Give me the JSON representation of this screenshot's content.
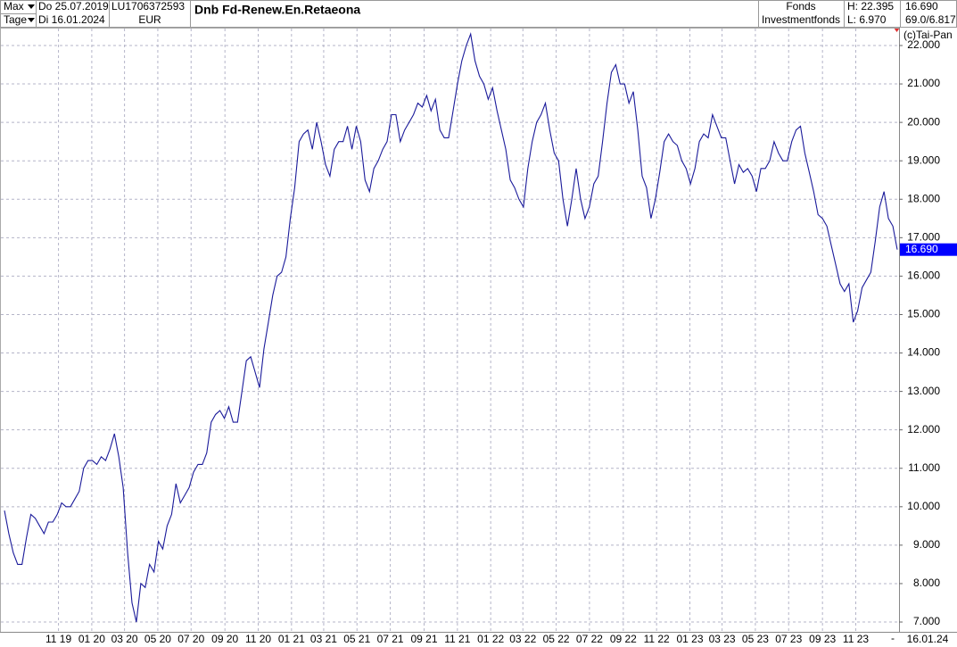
{
  "header": {
    "range": "Max",
    "unit": "Tage",
    "start": "Do 25.07.2019",
    "end": "Di 16.01.2024",
    "isin": "LU1706372593",
    "currency": "EUR",
    "name": "Dnb Fd-Renew.En.Retaeona",
    "kind": "Fonds",
    "category": "Investmentfonds",
    "high": "H: 22.395",
    "low": "L: 6.970",
    "last": "16.690",
    "range_info": "69.0/6.817",
    "copyright": "(c)Tai-Pan"
  },
  "chart_data": {
    "type": "line",
    "color": "#1a1a9a",
    "grid": true,
    "xlim": [
      "2019-07-25",
      "2024-01-16"
    ],
    "xticks": [
      {
        "value": "2019-11-01",
        "label": "11 19"
      },
      {
        "value": "2020-01-01",
        "label": "01 20"
      },
      {
        "value": "2020-03-01",
        "label": "03 20"
      },
      {
        "value": "2020-05-01",
        "label": "05 20"
      },
      {
        "value": "2020-07-01",
        "label": "07 20"
      },
      {
        "value": "2020-09-01",
        "label": "09 20"
      },
      {
        "value": "2020-11-01",
        "label": "11 20"
      },
      {
        "value": "2021-01-01",
        "label": "01 21"
      },
      {
        "value": "2021-03-01",
        "label": "03 21"
      },
      {
        "value": "2021-05-01",
        "label": "05 21"
      },
      {
        "value": "2021-07-01",
        "label": "07 21"
      },
      {
        "value": "2021-09-01",
        "label": "09 21"
      },
      {
        "value": "2021-11-01",
        "label": "11 21"
      },
      {
        "value": "2022-01-01",
        "label": "01 22"
      },
      {
        "value": "2022-03-01",
        "label": "03 22"
      },
      {
        "value": "2022-05-01",
        "label": "05 22"
      },
      {
        "value": "2022-07-01",
        "label": "07 22"
      },
      {
        "value": "2022-09-01",
        "label": "09 22"
      },
      {
        "value": "2022-11-01",
        "label": "11 22"
      },
      {
        "value": "2023-01-01",
        "label": "01 23"
      },
      {
        "value": "2023-03-01",
        "label": "03 23"
      },
      {
        "value": "2023-05-01",
        "label": "05 23"
      },
      {
        "value": "2023-07-01",
        "label": "07 23"
      },
      {
        "value": "2023-09-01",
        "label": "09 23"
      },
      {
        "value": "2023-11-01",
        "label": "11 23"
      }
    ],
    "x_marker": "-",
    "x_end_label": "16.01.24",
    "ylim": [
      6.745,
      22.441
    ],
    "yticks": [
      {
        "value": 7,
        "label": "7.000"
      },
      {
        "value": 8,
        "label": "8.000"
      },
      {
        "value": 9,
        "label": "9.000"
      },
      {
        "value": 10,
        "label": "10.000"
      },
      {
        "value": 11,
        "label": "11.000"
      },
      {
        "value": 12,
        "label": "12.000"
      },
      {
        "value": 13,
        "label": "13.000"
      },
      {
        "value": 14,
        "label": "14.000"
      },
      {
        "value": 15,
        "label": "15.000"
      },
      {
        "value": 16,
        "label": "16.000"
      },
      {
        "value": 17,
        "label": "17.000"
      },
      {
        "value": 18,
        "label": "18.000"
      },
      {
        "value": 19,
        "label": "19.000"
      },
      {
        "value": 20,
        "label": "20.000"
      },
      {
        "value": 21,
        "label": "21.000"
      },
      {
        "value": 22,
        "label": "22.000"
      }
    ],
    "last_label": {
      "value": 16.69,
      "label": "16.690"
    },
    "values": [
      9.9,
      9.3,
      8.8,
      8.5,
      8.5,
      9.2,
      9.8,
      9.7,
      9.5,
      9.3,
      9.6,
      9.6,
      9.8,
      10.1,
      10.0,
      10.0,
      10.2,
      10.4,
      11.0,
      11.2,
      11.2,
      11.1,
      11.3,
      11.2,
      11.5,
      11.9,
      11.3,
      10.5,
      8.8,
      7.5,
      7.0,
      8.0,
      7.9,
      8.5,
      8.3,
      9.1,
      8.9,
      9.5,
      9.8,
      10.6,
      10.1,
      10.3,
      10.5,
      10.9,
      11.1,
      11.1,
      11.4,
      12.2,
      12.4,
      12.5,
      12.3,
      12.6,
      12.2,
      12.2,
      13.0,
      13.8,
      13.9,
      13.5,
      13.1,
      14.1,
      14.8,
      15.5,
      16.0,
      16.1,
      16.5,
      17.5,
      18.3,
      19.5,
      19.7,
      19.8,
      19.3,
      20.0,
      19.5,
      18.9,
      18.6,
      19.3,
      19.5,
      19.5,
      19.9,
      19.3,
      19.9,
      19.5,
      18.5,
      18.2,
      18.8,
      19.0,
      19.3,
      19.5,
      20.2,
      20.2,
      19.5,
      19.8,
      20.0,
      20.2,
      20.5,
      20.4,
      20.7,
      20.3,
      20.6,
      19.8,
      19.6,
      19.6,
      20.3,
      21.0,
      21.6,
      22.0,
      22.3,
      21.6,
      21.2,
      21.0,
      20.6,
      20.9,
      20.3,
      19.8,
      19.3,
      18.5,
      18.3,
      18.0,
      17.8,
      18.8,
      19.5,
      20.0,
      20.2,
      20.5,
      19.8,
      19.2,
      19.0,
      18.0,
      17.3,
      18.0,
      18.8,
      18.0,
      17.5,
      17.8,
      18.4,
      18.6,
      19.5,
      20.5,
      21.3,
      21.5,
      21.0,
      21.0,
      20.5,
      20.8,
      19.8,
      18.6,
      18.3,
      17.5,
      18.0,
      18.7,
      19.5,
      19.7,
      19.5,
      19.4,
      19.0,
      18.8,
      18.4,
      18.8,
      19.5,
      19.7,
      19.6,
      20.2,
      19.9,
      19.6,
      19.6,
      19.0,
      18.4,
      18.9,
      18.7,
      18.8,
      18.6,
      18.2,
      18.8,
      18.8,
      19.0,
      19.5,
      19.2,
      19.0,
      19.0,
      19.5,
      19.8,
      19.9,
      19.2,
      18.7,
      18.2,
      17.6,
      17.5,
      17.3,
      16.8,
      16.3,
      15.8,
      15.6,
      15.8,
      14.8,
      15.1,
      15.7,
      15.9,
      16.1,
      16.9,
      17.8,
      18.2,
      17.5,
      17.3,
      16.69
    ]
  }
}
